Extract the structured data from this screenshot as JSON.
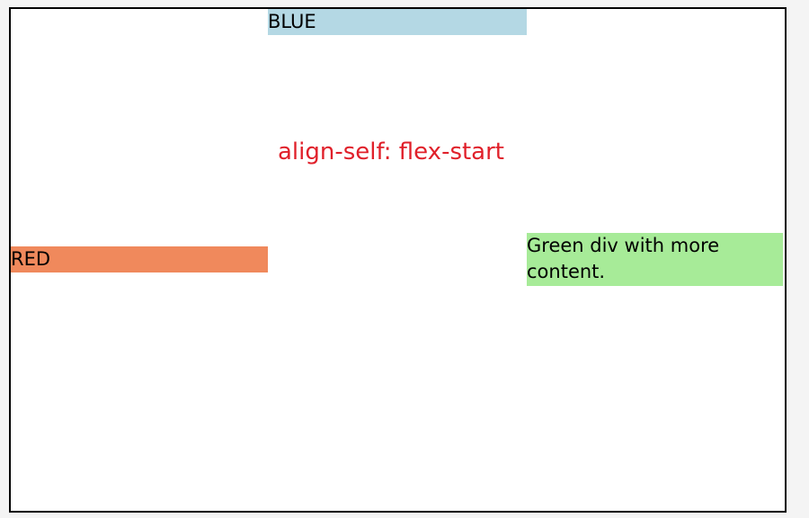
{
  "boxes": {
    "blue": {
      "label": "BLUE",
      "color": "#b4d8e4"
    },
    "red": {
      "label": "RED",
      "color": "#f0895c"
    },
    "green": {
      "label": "Green div with more content.",
      "color": "#a7eb98"
    }
  },
  "caption": {
    "text": "align-self: flex-start",
    "color": "#e0202a"
  }
}
